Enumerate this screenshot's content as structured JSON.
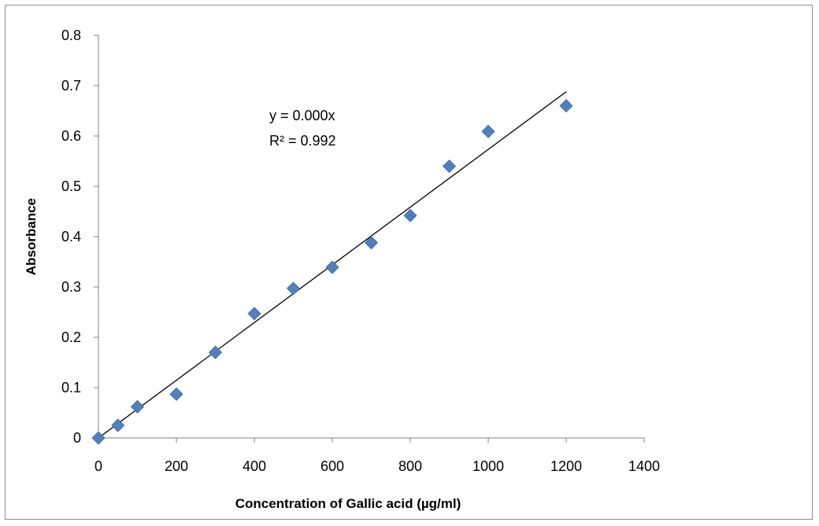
{
  "chart_data": {
    "type": "scatter",
    "title": "",
    "xlabel": "Concentration of Gallic acid (µg/ml)",
    "ylabel": "Absorbance",
    "xlim": [
      0,
      1400
    ],
    "ylim": [
      0,
      0.8
    ],
    "x_ticks": [
      "0",
      "200",
      "400",
      "600",
      "800",
      "1000",
      "1200",
      "1400"
    ],
    "y_ticks": [
      "0",
      "0.1",
      "0.2",
      "0.3",
      "0.4",
      "0.5",
      "0.6",
      "0.7",
      "0.8"
    ],
    "grid": false,
    "legend": "none",
    "series": [
      {
        "marker": "diamond",
        "color": "#4f81bd",
        "x": [
          0,
          50,
          100,
          200,
          300,
          400,
          500,
          600,
          700,
          800,
          900,
          1000,
          1200
        ],
        "y": [
          0,
          0.025,
          0.062,
          0.087,
          0.17,
          0.247,
          0.297,
          0.339,
          0.388,
          0.442,
          0.54,
          0.609,
          0.66
        ]
      }
    ],
    "trendline": {
      "type": "linear",
      "x_range": [
        0,
        1200
      ],
      "y_range": [
        0,
        0.688
      ],
      "color": "#000000"
    },
    "annotations": [
      "y = 0.000x",
      "R² = 0.992"
    ]
  }
}
